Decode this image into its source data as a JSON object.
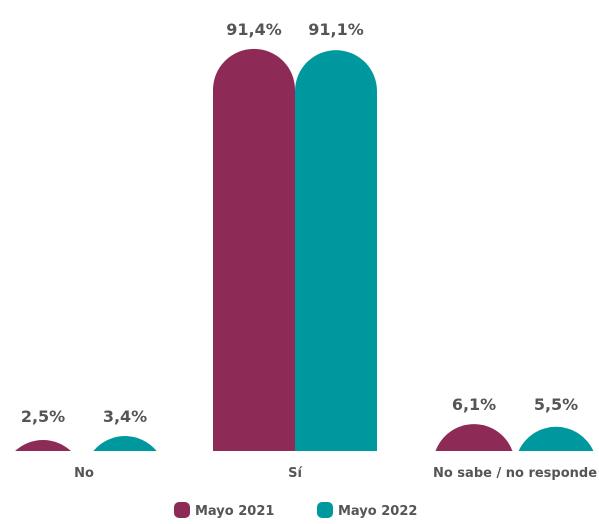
{
  "chart_data": {
    "type": "bar",
    "categories": [
      "No",
      "Sí",
      "No sabe / no responde"
    ],
    "series": [
      {
        "name": "Mayo 2021",
        "color": "#8E2A56",
        "values": [
          2.5,
          91.4,
          6.1
        ],
        "labels": [
          "2,5%",
          "91,4%",
          "6,1%"
        ]
      },
      {
        "name": "Mayo 2022",
        "color": "#00989F",
        "values": [
          3.4,
          91.1,
          5.5
        ],
        "labels": [
          "3,4%",
          "91,1%",
          "5,5%"
        ]
      }
    ],
    "ylim": [
      0,
      100
    ],
    "grid": false,
    "legend_position": "bottom"
  }
}
